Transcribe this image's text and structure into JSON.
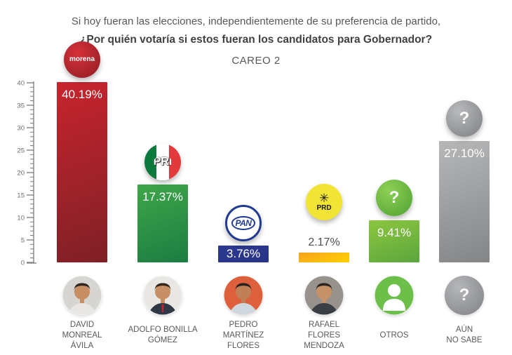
{
  "title": {
    "line1": "Si hoy fueran las elecciones, independientemente de su preferencia de partido,",
    "line2": "¿Por quién votaría si estos fueran los candidatos para Gobernador?",
    "line3": "CAREO 2"
  },
  "chart_data": {
    "type": "bar",
    "title": "¿Por quién votaría si estos fueran los candidatos para Gobernador? CAREO 2",
    "xlabel": "",
    "ylabel": "",
    "ylim": [
      0,
      40
    ],
    "y_ticks": [
      0,
      5,
      10,
      15,
      20,
      25,
      30,
      35,
      40
    ],
    "y_minor_step": 1,
    "grid": false,
    "legend": "none",
    "categories": [
      "DAVID MONREAL ÁVILA",
      "ADOLFO BONILLA GÓMEZ",
      "PEDRO MARTÍNEZ FLORES",
      "RAFAEL FLORES MENDOZA",
      "OTROS",
      "AÚN NO SABE"
    ],
    "values": [
      40.19,
      17.37,
      3.76,
      2.17,
      9.41,
      27.1
    ],
    "bars": [
      {
        "candidate": "DAVID MONREAL ÁVILA",
        "name_lines": [
          "DAVID",
          "MONREAL",
          "ÁVILA"
        ],
        "party": "MORENA",
        "value": 40.19,
        "label": "40.19%",
        "label_placement": "inside",
        "color_top": "#c8242e",
        "color_bottom": "#7f2026",
        "logo": {
          "kind": "morena",
          "text": "morena",
          "color_top": "#d63038",
          "color_bottom": "#8f1d24"
        },
        "avatar": {
          "type": "photo",
          "bg": "#d6d5d1",
          "skin": "#c68e62",
          "hair": "#2e2420",
          "shirt": "#e9e7e3"
        }
      },
      {
        "candidate": "ADOLFO BONILLA GÓMEZ",
        "name_lines": [
          "ADOLFO BONILLA",
          "GÓMEZ"
        ],
        "party": "PRI",
        "value": 17.37,
        "label": "17.37%",
        "label_placement": "inside",
        "color_top": "#3fa649",
        "color_bottom": "#1d7c42",
        "logo": {
          "kind": "pri",
          "text": "PRI",
          "stripe_green": "#0c7a3d",
          "stripe_white": "#ffffff",
          "stripe_red": "#e23a3c"
        },
        "avatar": {
          "type": "photo",
          "bg": "#e9e7e4",
          "skin": "#c78f63",
          "hair": "#33261f",
          "shirt": "#2f3744",
          "tie": "#c8202f"
        }
      },
      {
        "candidate": "PEDRO MARTÍNEZ FLORES",
        "name_lines": [
          "PEDRO",
          "MARTÍNEZ",
          "FLORES"
        ],
        "party": "PAN",
        "value": 3.76,
        "label": "3.76%",
        "label_placement": "inside",
        "color_top": "#2b3990",
        "color_bottom": "#283485",
        "logo": {
          "kind": "pan",
          "text": "PAN",
          "color": "#1f3a93"
        },
        "avatar": {
          "type": "photo",
          "bg": "#dd5f3b",
          "skin": "#c08057",
          "hair": "#27201c",
          "shirt": "#cfd8de"
        }
      },
      {
        "candidate": "RAFAEL FLORES MENDOZA",
        "name_lines": [
          "RAFAEL",
          "FLORES",
          "MENDOZA"
        ],
        "party": "PRD",
        "value": 2.17,
        "label": "2.17%",
        "label_placement": "outside",
        "color_top": "#f6a31c",
        "color_bottom": "#ffd005",
        "logo": {
          "kind": "prd",
          "text": "PRD",
          "symbol": "✳",
          "bg": "#f2e434"
        },
        "avatar": {
          "type": "photo",
          "bg": "#97928c",
          "skin": "#c79168",
          "hair": "#2b2420",
          "shirt": "#3a3f46"
        }
      },
      {
        "candidate": "OTROS",
        "name_lines": [
          "OTROS"
        ],
        "party": "",
        "value": 9.41,
        "label": "9.41%",
        "label_placement": "inside",
        "color_top": "#8dc63f",
        "color_bottom": "#5ba63e",
        "logo": {
          "kind": "question",
          "text": "?",
          "color_top": "#8ed055",
          "color_bottom": "#4fa132"
        },
        "avatar": {
          "type": "person",
          "bg": "#6cc04a",
          "fg": "#ffffff"
        }
      },
      {
        "candidate": "AÚN NO SABE",
        "name_lines": [
          "AÚN",
          "NO SABE"
        ],
        "party": "",
        "value": 27.1,
        "label": "27.10%",
        "label_placement": "inside",
        "color_top": "#b5b7b9",
        "color_bottom": "#838587",
        "logo": {
          "kind": "question",
          "text": "?",
          "color_top": "#b7b9bb",
          "color_bottom": "#7d7f82"
        },
        "avatar": {
          "type": "question",
          "color_top": "#b4b6b8",
          "color_bottom": "#7f8184",
          "fg": "#ffffff"
        }
      }
    ]
  },
  "axis_style": {
    "line_color": "#808285",
    "label_color": "#6d6e71"
  }
}
